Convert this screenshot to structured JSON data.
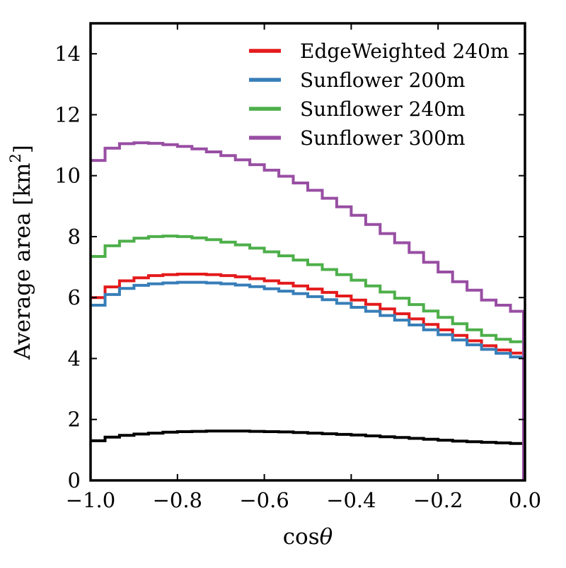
{
  "figure": {
    "background": "#ffffff",
    "axis_color": "#000000",
    "tick_label_fontsize": 29,
    "axis_label_fontsize": 31,
    "legend_fontsize": 28
  },
  "chart_data": {
    "type": "step-histogram",
    "title": "",
    "xlabel": {
      "text": "cosθ",
      "prefix": "cos",
      "symbol": "θ"
    },
    "ylabel": {
      "text": "Average area [km²]",
      "main": "Average area [km",
      "sup": "2",
      "end": "]"
    },
    "xlim": [
      -1.0,
      0.0
    ],
    "ylim": [
      0,
      15
    ],
    "x_ticks": [
      -1.0,
      -0.8,
      -0.6,
      -0.4,
      -0.2,
      0.0
    ],
    "x_tick_labels": [
      "−1.0",
      "−0.8",
      "−0.6",
      "−0.4",
      "−0.2",
      "0.0"
    ],
    "y_ticks": [
      0,
      2,
      4,
      6,
      8,
      10,
      12,
      14
    ],
    "y_tick_labels": [
      "0",
      "2",
      "4",
      "6",
      "8",
      "10",
      "12",
      "14"
    ],
    "grid": false,
    "legend_position": "upper-right-inside-frameless",
    "bins": 30,
    "series": [
      {
        "name": "reference-black",
        "label": null,
        "in_legend": false,
        "color": "#000000",
        "close_right": false,
        "values": [
          1.3,
          1.42,
          1.48,
          1.52,
          1.55,
          1.58,
          1.6,
          1.61,
          1.62,
          1.62,
          1.62,
          1.61,
          1.6,
          1.59,
          1.57,
          1.55,
          1.53,
          1.51,
          1.49,
          1.46,
          1.43,
          1.41,
          1.38,
          1.35,
          1.32,
          1.29,
          1.27,
          1.25,
          1.23,
          1.21
        ]
      },
      {
        "name": "edgeweighted-240m",
        "label": "EdgeWeighted 240m",
        "in_legend": true,
        "color": "#e41a1c",
        "close_right": false,
        "values": [
          6.0,
          6.35,
          6.55,
          6.65,
          6.72,
          6.75,
          6.77,
          6.77,
          6.75,
          6.72,
          6.68,
          6.62,
          6.55,
          6.47,
          6.38,
          6.28,
          6.17,
          6.05,
          5.92,
          5.78,
          5.63,
          5.47,
          5.3,
          5.12,
          4.94,
          4.76,
          4.58,
          4.42,
          4.28,
          4.18
        ]
      },
      {
        "name": "sunflower-200m",
        "label": "Sunflower 200m",
        "in_legend": true,
        "color": "#377eb8",
        "close_right": false,
        "values": [
          5.75,
          6.1,
          6.3,
          6.4,
          6.45,
          6.48,
          6.5,
          6.5,
          6.48,
          6.45,
          6.41,
          6.36,
          6.29,
          6.21,
          6.13,
          6.03,
          5.93,
          5.81,
          5.68,
          5.55,
          5.41,
          5.26,
          5.1,
          4.94,
          4.78,
          4.61,
          4.45,
          4.3,
          4.17,
          4.05
        ]
      },
      {
        "name": "sunflower-240m",
        "label": "Sunflower 240m",
        "in_legend": true,
        "color": "#4daf4a",
        "close_right": false,
        "values": [
          7.35,
          7.7,
          7.85,
          7.95,
          8.0,
          8.02,
          8.0,
          7.96,
          7.9,
          7.82,
          7.73,
          7.62,
          7.5,
          7.37,
          7.23,
          7.08,
          6.92,
          6.75,
          6.57,
          6.38,
          6.18,
          5.98,
          5.77,
          5.56,
          5.35,
          5.14,
          4.94,
          4.76,
          4.63,
          4.55
        ]
      },
      {
        "name": "sunflower-300m",
        "label": "Sunflower 300m",
        "in_legend": true,
        "color": "#984ea3",
        "close_right": true,
        "values": [
          10.5,
          10.9,
          11.05,
          11.08,
          11.06,
          11.02,
          10.96,
          10.88,
          10.78,
          10.66,
          10.52,
          10.36,
          10.18,
          9.98,
          9.76,
          9.52,
          9.26,
          8.98,
          8.7,
          8.4,
          8.1,
          7.8,
          7.48,
          7.16,
          6.84,
          6.52,
          6.24,
          5.92,
          5.75,
          5.55
        ]
      }
    ]
  }
}
